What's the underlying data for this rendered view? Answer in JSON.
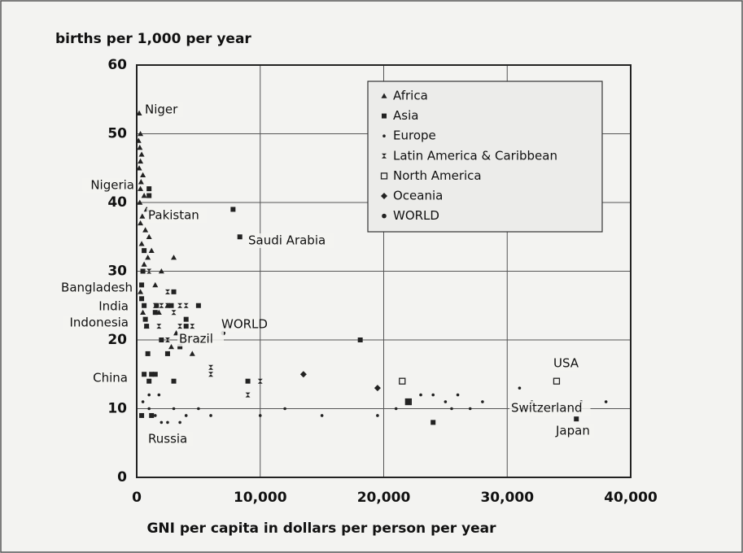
{
  "chart_data": {
    "type": "scatter",
    "ylabel": "births per 1,000 per year",
    "xlabel": "GNI per capita in dollars per person per year",
    "xlim": [
      0,
      40000
    ],
    "ylim": [
      0,
      60
    ],
    "xticks": [
      0,
      {
        "value": 10000,
        "label": "10,000"
      },
      {
        "value": 20000,
        "label": "20,000"
      },
      {
        "value": 30000,
        "label": "30,000"
      },
      {
        "value": 40000,
        "label": "40,000"
      }
    ],
    "yticks": [
      0,
      10,
      20,
      30,
      40,
      50,
      60
    ],
    "grid": true,
    "legend": "upper right",
    "series": [
      {
        "name": "Africa",
        "marker": "triangle",
        "color": "#222",
        "x": [
          200,
          300,
          150,
          250,
          400,
          300,
          200,
          500,
          350,
          300,
          600,
          250,
          800,
          450,
          300,
          700,
          1000,
          400,
          1200,
          900,
          3000,
          600,
          2000,
          1500,
          300,
          2500,
          1800,
          3200,
          4500,
          2800,
          500,
          800
        ],
        "values": [
          53,
          50,
          49,
          48,
          47,
          46,
          45,
          44,
          43,
          42,
          41,
          40,
          39,
          38,
          37,
          36,
          35,
          34,
          33,
          32,
          32,
          31,
          30,
          28,
          27,
          25,
          24,
          21,
          18,
          19,
          24,
          22
        ]
      },
      {
        "name": "Asia",
        "marker": "square",
        "color": "#222",
        "x": [
          1000,
          1000,
          8350,
          7800,
          400,
          600,
          800,
          1000,
          35600,
          18100,
          1500,
          1200,
          600,
          900,
          2500,
          3500,
          2000,
          700,
          400,
          500,
          600,
          1500,
          1600,
          2800,
          3000,
          4000,
          4000,
          9000,
          22000,
          24000,
          1200,
          400,
          3000,
          5000
        ],
        "values": [
          41,
          42,
          35,
          39,
          28,
          25,
          22,
          14,
          8.5,
          20,
          15,
          15,
          15,
          18,
          18,
          19,
          20,
          23,
          26,
          30,
          33,
          24,
          25,
          25,
          27,
          22,
          23,
          14,
          11,
          8,
          9,
          9,
          14,
          25
        ]
      },
      {
        "name": "Europe",
        "marker": "dot",
        "color": "#222",
        "x": [
          500,
          1000,
          1500,
          2000,
          3000,
          4000,
          5000,
          6000,
          10000,
          12000,
          15000,
          19500,
          21000,
          23000,
          24000,
          25000,
          25500,
          26000,
          27000,
          28000,
          31000,
          32000,
          36000,
          38000,
          2500,
          3500,
          1000,
          1800
        ],
        "values": [
          11,
          10,
          9,
          8,
          10,
          9,
          10,
          9,
          9,
          10,
          9,
          9,
          10,
          12,
          12,
          11,
          10,
          12,
          10,
          11,
          13,
          11,
          11,
          11,
          8,
          8,
          12,
          12
        ]
      },
      {
        "name": "Latin America & Caribbean",
        "marker": "bowtie",
        "color": "#222",
        "x": [
          1000,
          2000,
          2500,
          3000,
          3500,
          4000,
          5000,
          6000,
          6000,
          2500,
          1500,
          4500,
          9000,
          10000,
          2500,
          3500,
          1800
        ],
        "values": [
          30,
          25,
          25,
          24,
          22,
          25,
          20,
          16,
          15,
          27,
          25,
          22,
          12,
          14,
          20,
          25,
          22
        ]
      },
      {
        "name": "North America",
        "marker": "open-square",
        "color": "#222",
        "x": [
          34000,
          22000,
          21500
        ],
        "values": [
          14,
          11,
          14
        ]
      },
      {
        "name": "Oceania",
        "marker": "diamond",
        "color": "#222",
        "x": [
          13500,
          19500
        ],
        "values": [
          15,
          13
        ]
      },
      {
        "name": "WORLD",
        "marker": "world",
        "color": "#222",
        "x": [
          7000
        ],
        "values": [
          21
        ]
      }
    ],
    "annotations": [
      "Niger",
      "Nigeria",
      "Pakistan",
      "Saudi Arabia",
      "Bangladesh",
      "India",
      "Indonesia",
      "WORLD",
      "Brazil",
      "China",
      "Russia",
      "USA",
      "Switzerland",
      "Japan"
    ]
  }
}
